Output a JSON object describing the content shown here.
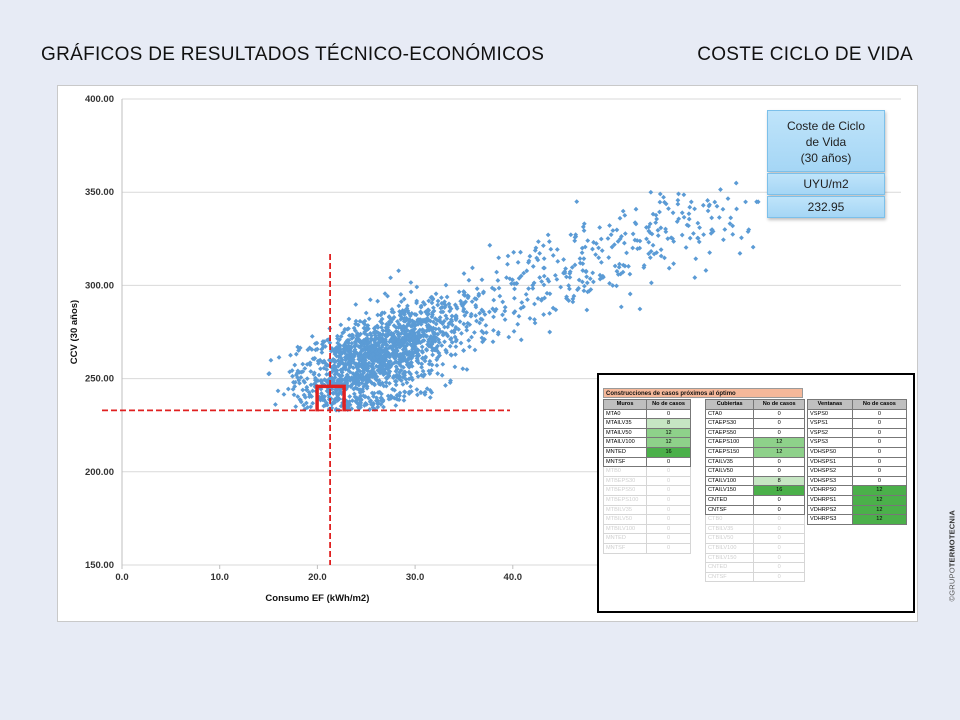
{
  "header": {
    "title": "GRÁFICOS DE RESULTADOS TÉCNICO-ECONÓMICOS",
    "subtitle": "COSTE CICLO DE VIDA"
  },
  "chart_data": {
    "type": "scatter",
    "xlabel": "Consumo EF (kWh/m2)",
    "ylabel": "CCV  (30 años)",
    "xlim": [
      0,
      40
    ],
    "ylim": [
      150,
      400
    ],
    "x_ticks": [
      "0.0",
      "10.0",
      "20.0",
      "30.0",
      "40.0"
    ],
    "y_ticks": [
      "150.00",
      "200.00",
      "250.00",
      "300.00",
      "350.00",
      "400.00"
    ],
    "grid": "horizontal",
    "legend": "none",
    "point_color": "#5b9bd5",
    "optimum": {
      "x": 21.3,
      "y": 232.95
    },
    "clusters": [
      {
        "cx": 25.5,
        "cy": 262,
        "sx": 3.6,
        "sy": 9,
        "n": 900
      },
      {
        "cx": 31.0,
        "cy": 276,
        "sx": 3.5,
        "sy": 10,
        "n": 380
      },
      {
        "cx": 22.0,
        "cy": 244,
        "sx": 2.8,
        "sy": 5,
        "n": 160
      },
      {
        "cx": 43.0,
        "cy": 302,
        "sx": 6.0,
        "sy": 12,
        "n": 220
      },
      {
        "cx": 57.0,
        "cy": 333,
        "sx": 5.5,
        "sy": 12,
        "n": 130
      },
      {
        "cx": 26.0,
        "cy": 238,
        "sx": 3.2,
        "sy": 2.5,
        "n": 110
      }
    ]
  },
  "ccv_box": {
    "label_line1": "Coste de Ciclo",
    "label_line2": "de Vida",
    "label_line3": "(30 años)",
    "unit": "UYU/m2",
    "value": "232.95"
  },
  "table": {
    "title": "Construcciones de casos próximos al óptimo",
    "muros": {
      "headers": [
        "Muros",
        "No de casos"
      ],
      "rows": [
        {
          "name": "MTA0",
          "count": "0",
          "shade": "",
          "faded": false
        },
        {
          "name": "MTAILV35",
          "count": "8",
          "shade": "g1",
          "faded": false
        },
        {
          "name": "MTAILV50",
          "count": "12",
          "shade": "g2",
          "faded": false
        },
        {
          "name": "MTAILV100",
          "count": "12",
          "shade": "g2",
          "faded": false
        },
        {
          "name": "MNTED",
          "count": "16",
          "shade": "g3",
          "faded": false
        },
        {
          "name": "MNTSF",
          "count": "0",
          "shade": "",
          "faded": false
        },
        {
          "name": "MTB0",
          "count": "0",
          "shade": "",
          "faded": true
        },
        {
          "name": "MTBEPS30",
          "count": "0",
          "shade": "",
          "faded": true
        },
        {
          "name": "MTBEPS50",
          "count": "0",
          "shade": "",
          "faded": true
        },
        {
          "name": "MTBEPS100",
          "count": "0",
          "shade": "",
          "faded": true
        },
        {
          "name": "MTBILV35",
          "count": "0",
          "shade": "",
          "faded": true
        },
        {
          "name": "MTBILV50",
          "count": "0",
          "shade": "",
          "faded": true
        },
        {
          "name": "MTBILV100",
          "count": "0",
          "shade": "",
          "faded": true
        },
        {
          "name": "MNTED",
          "count": "0",
          "shade": "",
          "faded": true
        },
        {
          "name": "MNTSF",
          "count": "0",
          "shade": "",
          "faded": true
        }
      ]
    },
    "cubiertas": {
      "headers": [
        "Cubiertas",
        "No de casos"
      ],
      "rows": [
        {
          "name": "CTA0",
          "count": "0",
          "shade": "",
          "faded": false
        },
        {
          "name": "CTAEPS30",
          "count": "0",
          "shade": "",
          "faded": false
        },
        {
          "name": "CTAEPS50",
          "count": "0",
          "shade": "",
          "faded": false
        },
        {
          "name": "CTAEPS100",
          "count": "12",
          "shade": "g2",
          "faded": false
        },
        {
          "name": "CTAEPS150",
          "count": "12",
          "shade": "g2",
          "faded": false
        },
        {
          "name": "CTAILV35",
          "count": "0",
          "shade": "",
          "faded": false
        },
        {
          "name": "CTAILV50",
          "count": "0",
          "shade": "",
          "faded": false
        },
        {
          "name": "CTAILV100",
          "count": "8",
          "shade": "g1",
          "faded": false
        },
        {
          "name": "CTAILV150",
          "count": "16",
          "shade": "g3",
          "faded": false
        },
        {
          "name": "CNTED",
          "count": "0",
          "shade": "",
          "faded": false
        },
        {
          "name": "CNTSF",
          "count": "0",
          "shade": "",
          "faded": false
        },
        {
          "name": "CTB0",
          "count": "0",
          "shade": "",
          "faded": true
        },
        {
          "name": "CTBILV35",
          "count": "0",
          "shade": "",
          "faded": true
        },
        {
          "name": "CTBILV50",
          "count": "0",
          "shade": "",
          "faded": true
        },
        {
          "name": "CTBILV100",
          "count": "0",
          "shade": "",
          "faded": true
        },
        {
          "name": "CTBILV150",
          "count": "0",
          "shade": "",
          "faded": true
        },
        {
          "name": "CNTED",
          "count": "0",
          "shade": "",
          "faded": true
        },
        {
          "name": "CNTSF",
          "count": "0",
          "shade": "",
          "faded": true
        }
      ]
    },
    "ventanas": {
      "headers": [
        "Ventanas",
        "No de casos"
      ],
      "rows": [
        {
          "name": "VSPS0",
          "count": "0",
          "shade": "",
          "faded": false
        },
        {
          "name": "VSPS1",
          "count": "0",
          "shade": "",
          "faded": false
        },
        {
          "name": "VSPS2",
          "count": "0",
          "shade": "",
          "faded": false
        },
        {
          "name": "VSPS3",
          "count": "0",
          "shade": "",
          "faded": false
        },
        {
          "name": "VDHSPS0",
          "count": "0",
          "shade": "",
          "faded": false
        },
        {
          "name": "VDHSPS1",
          "count": "0",
          "shade": "",
          "faded": false
        },
        {
          "name": "VDHSPS2",
          "count": "0",
          "shade": "",
          "faded": false
        },
        {
          "name": "VDHSPS3",
          "count": "0",
          "shade": "",
          "faded": false
        },
        {
          "name": "VDHRPS0",
          "count": "12",
          "shade": "g3",
          "faded": false
        },
        {
          "name": "VDHRPS1",
          "count": "12",
          "shade": "g3",
          "faded": false
        },
        {
          "name": "VDHRPS2",
          "count": "12",
          "shade": "g3",
          "faded": false
        },
        {
          "name": "VDHRPS3",
          "count": "12",
          "shade": "g3",
          "faded": false
        }
      ]
    }
  },
  "watermark": {
    "prefix": "©GRUPO",
    "brand": "TERMOTECNIA"
  }
}
